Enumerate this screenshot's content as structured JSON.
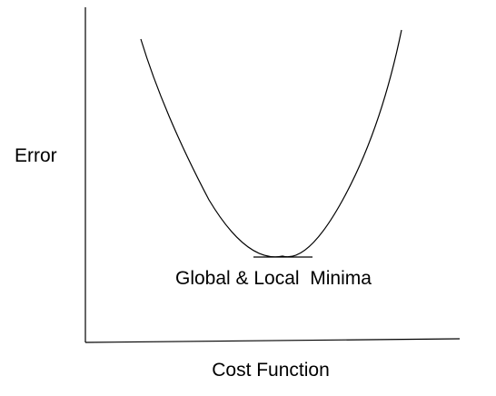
{
  "diagram": {
    "y_axis_label": "Error",
    "x_axis_label": "Cost Function",
    "minimum_label": "Global & Local  Minima",
    "colors": {
      "background": "#ffffff",
      "lines": "#000000",
      "text": "#000000"
    }
  }
}
